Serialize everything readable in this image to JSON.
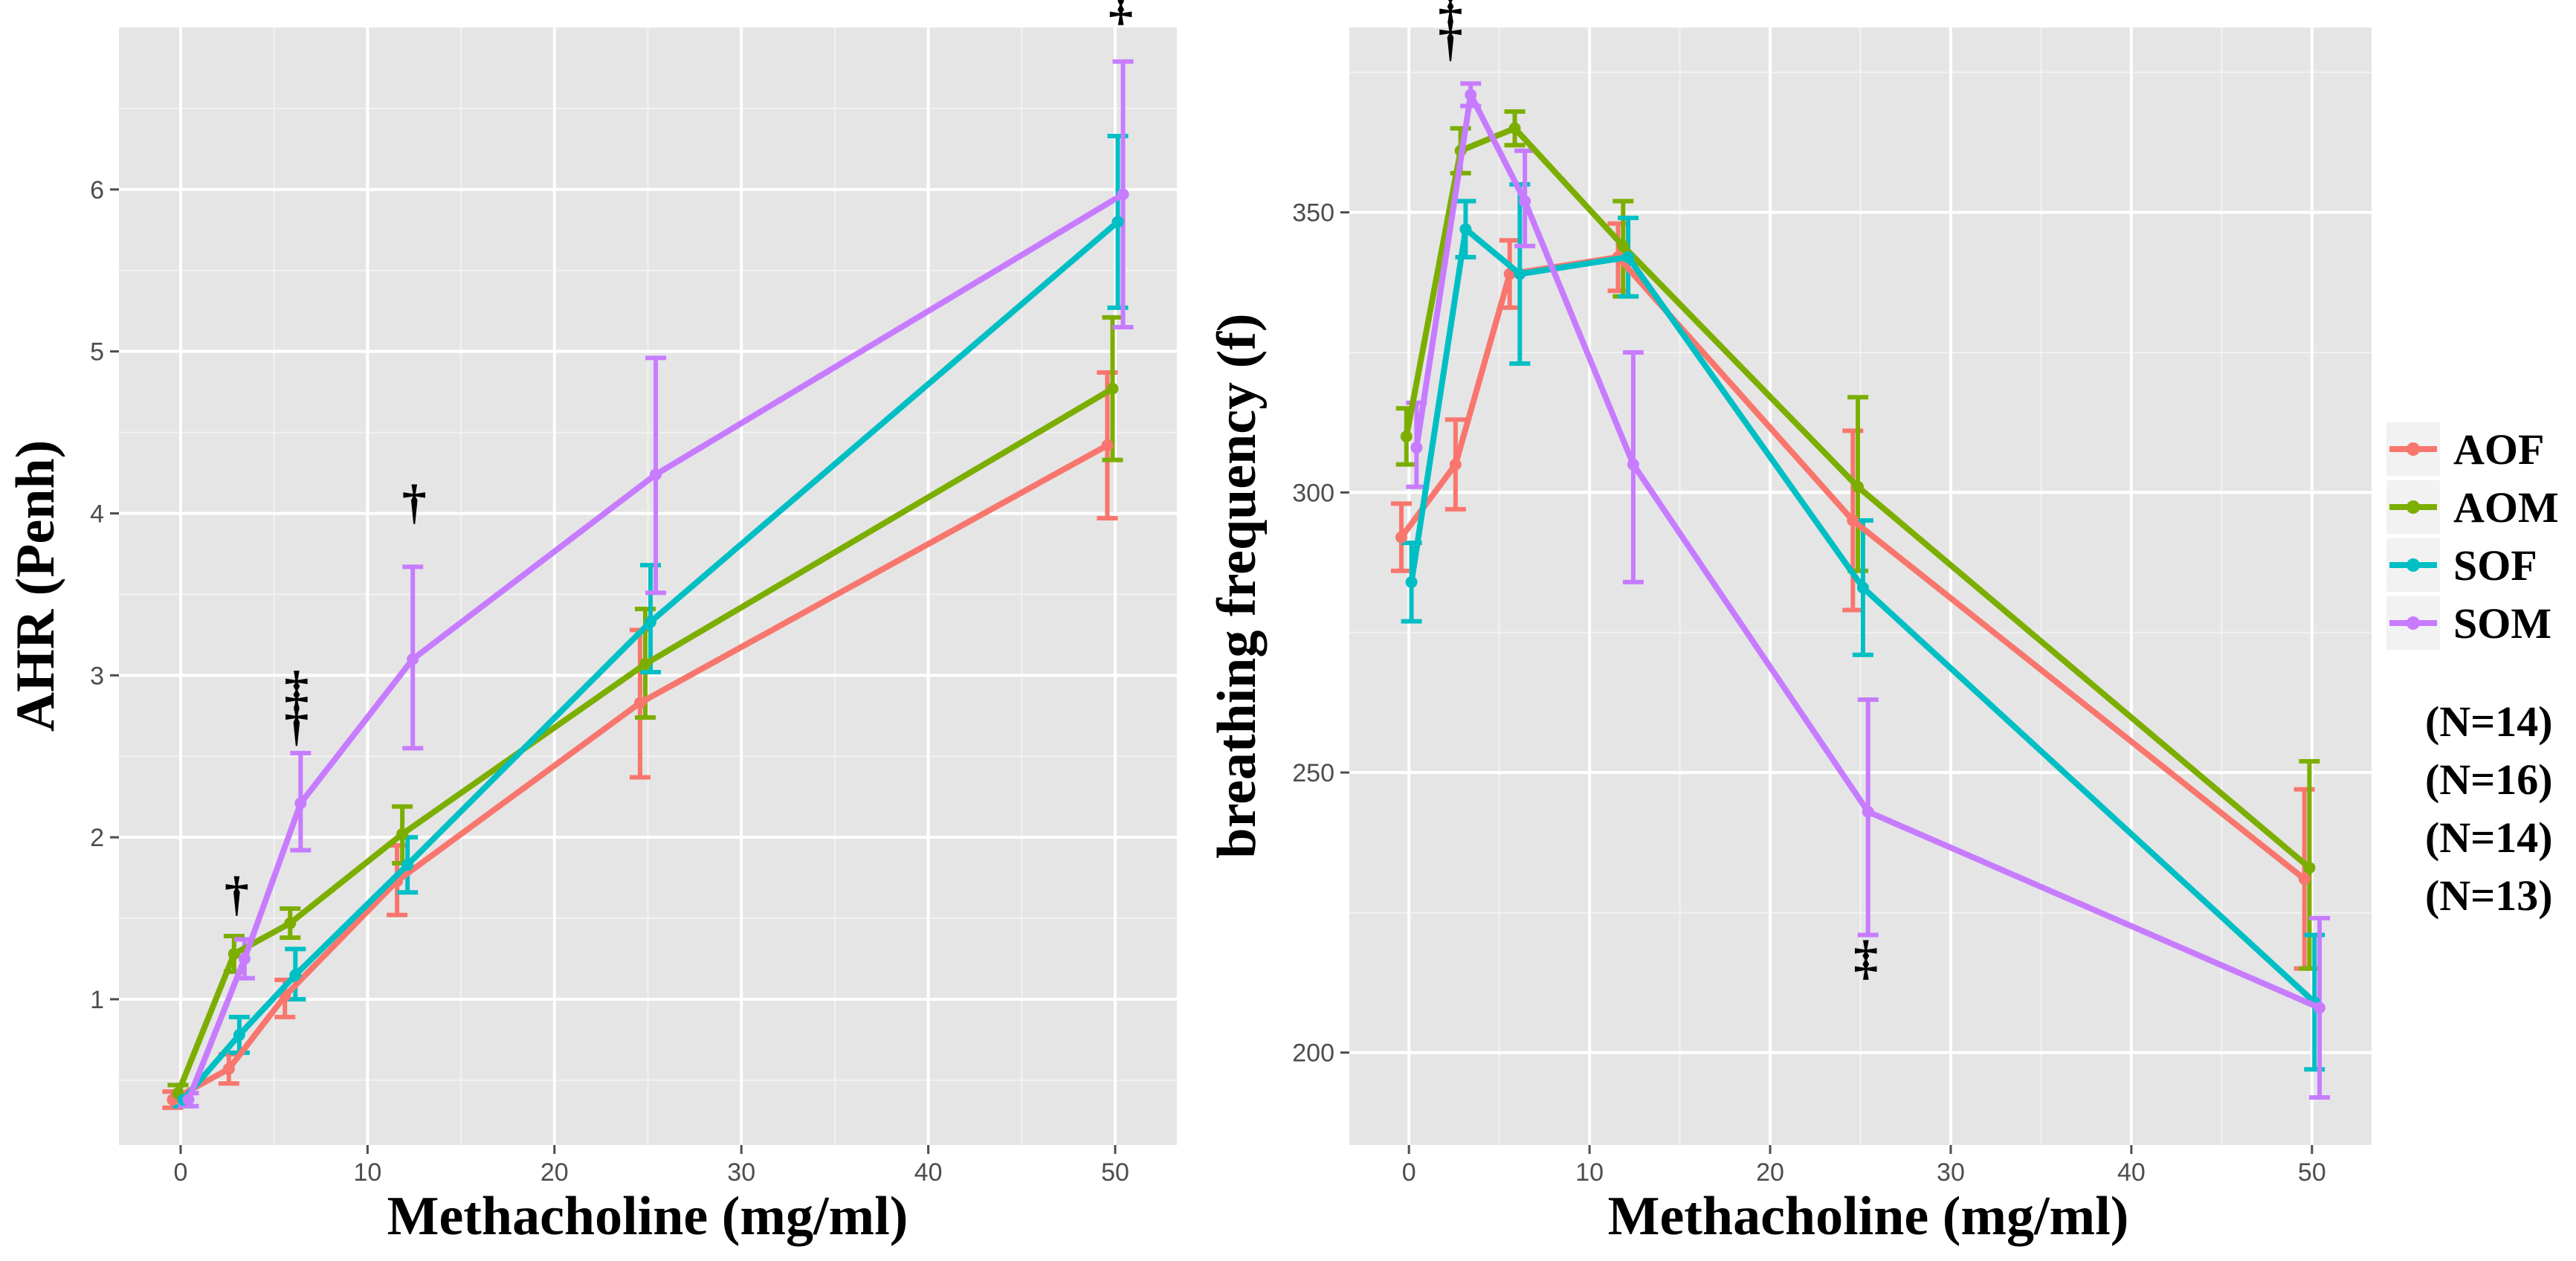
{
  "figure": {
    "legend": [
      {
        "label": "AOF",
        "color": "#F8766D"
      },
      {
        "label": "AOM",
        "color": "#7CAE00"
      },
      {
        "label": "SOF",
        "color": "#00BFC4"
      },
      {
        "label": "SOM",
        "color": "#C77CFF"
      }
    ],
    "sample_sizes": [
      "(N=14)",
      "(N=16)",
      "(N=14)",
      "(N=13)"
    ]
  },
  "chart_data": [
    {
      "type": "line",
      "title": "",
      "xlabel": "Methacholine (mg/ml)",
      "ylabel": "AHR (Penh)",
      "xlim": [
        -3.3,
        53.3
      ],
      "ylim": [
        0.1,
        7.0
      ],
      "xticks": [
        0,
        10,
        20,
        30,
        40,
        50
      ],
      "yticks": [
        1,
        2,
        3,
        4,
        5,
        6
      ],
      "x": [
        0,
        3,
        6,
        12,
        25,
        50
      ],
      "grid": true,
      "series": [
        {
          "name": "AOF",
          "color": "#F8766D",
          "values": [
            0.38,
            0.57,
            1.02,
            1.73,
            2.83,
            4.42
          ],
          "err_low": [
            0.33,
            0.48,
            0.89,
            1.52,
            2.37,
            3.97
          ],
          "err_high": [
            0.43,
            0.66,
            1.12,
            1.95,
            3.28,
            4.87
          ]
        },
        {
          "name": "AOM",
          "color": "#7CAE00",
          "values": [
            0.42,
            1.28,
            1.47,
            2.02,
            3.07,
            4.77
          ],
          "err_low": [
            0.37,
            1.17,
            1.38,
            1.84,
            2.74,
            4.33
          ],
          "err_high": [
            0.47,
            1.39,
            1.56,
            2.19,
            3.41,
            5.21
          ]
        },
        {
          "name": "SOF",
          "color": "#00BFC4",
          "values": [
            0.38,
            0.78,
            1.15,
            1.83,
            3.33,
            5.8
          ],
          "err_low": [
            0.34,
            0.67,
            1.0,
            1.66,
            3.02,
            5.27
          ],
          "err_high": [
            0.42,
            0.89,
            1.31,
            2.0,
            3.68,
            6.33
          ]
        },
        {
          "name": "SOM",
          "color": "#C77CFF",
          "values": [
            0.38,
            1.25,
            2.21,
            3.1,
            4.24,
            5.97
          ],
          "err_low": [
            0.34,
            1.13,
            1.92,
            2.55,
            3.51,
            5.15
          ],
          "err_high": [
            0.42,
            1.37,
            2.52,
            3.67,
            4.96,
            6.79
          ]
        }
      ],
      "annotations": [
        {
          "text": "†",
          "x": 3,
          "y": 1.55
        },
        {
          "text": "‡",
          "x": 6.2,
          "y": 2.82
        },
        {
          "text": "†",
          "x": 6.2,
          "y": 2.6
        },
        {
          "text": "†",
          "x": 12.5,
          "y": 3.97
        },
        {
          "text": "‡",
          "x": 50.3,
          "y": 7.05
        }
      ]
    },
    {
      "type": "line",
      "title": "",
      "xlabel": "Methacholine (mg/ml)",
      "ylabel": "breathing frequency (f)",
      "xlim": [
        -3.3,
        53.3
      ],
      "ylim": [
        183.5,
        383
      ],
      "xticks": [
        0,
        10,
        20,
        30,
        40,
        50
      ],
      "yticks": [
        200,
        250,
        300,
        350
      ],
      "x": [
        0,
        3,
        6,
        12,
        25,
        50
      ],
      "grid": true,
      "series": [
        {
          "name": "AOF",
          "color": "#F8766D",
          "values": [
            292,
            305,
            339,
            342,
            295,
            231
          ],
          "err_low": [
            286,
            297,
            333,
            336,
            279,
            215
          ],
          "err_high": [
            298,
            313,
            345,
            348,
            311,
            247
          ]
        },
        {
          "name": "AOM",
          "color": "#7CAE00",
          "values": [
            310,
            361,
            365,
            344,
            301,
            233
          ],
          "err_low": [
            305,
            357,
            362,
            335,
            286,
            215
          ],
          "err_high": [
            315,
            365,
            368,
            352,
            317,
            252
          ]
        },
        {
          "name": "SOF",
          "color": "#00BFC4",
          "values": [
            284,
            347,
            339,
            342,
            283,
            209
          ],
          "err_low": [
            277,
            342,
            323,
            335,
            271,
            197
          ],
          "err_high": [
            291,
            352,
            355,
            349,
            295,
            221
          ]
        },
        {
          "name": "SOM",
          "color": "#C77CFF",
          "values": [
            308,
            371,
            352,
            305,
            243,
            208
          ],
          "err_low": [
            301,
            369,
            344,
            284,
            221,
            192
          ],
          "err_high": [
            316,
            373,
            361,
            325,
            263,
            224
          ]
        }
      ],
      "annotations": [
        {
          "text": "‡",
          "x": 2.3,
          "y": 385
        },
        {
          "text": "†",
          "x": 2.3,
          "y": 378
        },
        {
          "text": "‡",
          "x": 25.3,
          "y": 214
        }
      ]
    }
  ]
}
